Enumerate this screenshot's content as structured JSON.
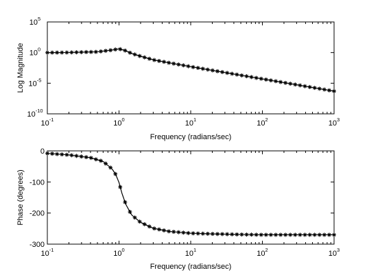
{
  "chart_data": [
    {
      "type": "line",
      "xlabel": "Frequency (radians/sec)",
      "ylabel": "Log Magnitude",
      "xscale": "log",
      "yscale": "log",
      "xlim": [
        0.1,
        1000
      ],
      "ylim": [
        1e-10,
        100000
      ],
      "xticks": [
        {
          "base": "10",
          "exp": "-1"
        },
        {
          "base": "10",
          "exp": "0"
        },
        {
          "base": "10",
          "exp": "1"
        },
        {
          "base": "10",
          "exp": "2"
        },
        {
          "base": "10",
          "exp": "3"
        }
      ],
      "yticks": [
        {
          "base": "10",
          "exp": "-10"
        },
        {
          "base": "10",
          "exp": "-5"
        },
        {
          "base": "10",
          "exp": "0"
        },
        {
          "base": "10",
          "exp": "5"
        }
      ],
      "grid": false,
      "series": [
        {
          "style": "line with asterisk markers",
          "x": [
            0.1,
            0.2,
            0.5,
            0.8,
            1.0,
            1.2,
            1.5,
            2,
            3,
            5,
            10,
            20,
            50,
            100,
            200,
            500,
            1000
          ],
          "y": [
            0.99,
            1.04,
            1.33,
            2.6,
            4.0,
            2.3,
            0.72,
            0.25,
            0.065,
            0.0215,
            0.00502,
            0.00125,
            0.0002,
            5e-05,
            1.25e-05,
            2e-06,
            5e-07
          ]
        }
      ]
    },
    {
      "type": "line",
      "xlabel": "Frequency (radians/sec)",
      "ylabel": "Phase (degrees)",
      "xscale": "log",
      "xlim": [
        0.1,
        1000
      ],
      "ylim": [
        -300,
        0
      ],
      "xticks": [
        {
          "base": "10",
          "exp": "-1"
        },
        {
          "base": "10",
          "exp": "0"
        },
        {
          "base": "10",
          "exp": "1"
        },
        {
          "base": "10",
          "exp": "2"
        },
        {
          "base": "10",
          "exp": "3"
        }
      ],
      "yticks": [
        "-300",
        "-200",
        "-100",
        "0"
      ],
      "grid": false,
      "series": [
        {
          "style": "line with asterisk markers",
          "x": [
            0.1,
            0.2,
            0.4,
            0.6,
            0.8,
            0.9,
            1.0,
            1.1,
            1.25,
            1.5,
            2,
            3,
            5,
            10,
            20,
            50,
            100,
            200,
            500,
            1000
          ],
          "y": [
            -8,
            -13,
            -22,
            -34,
            -58,
            -76,
            -102,
            -137,
            -173,
            -206,
            -230,
            -249,
            -259,
            -265,
            -267,
            -269,
            -270,
            -270,
            -270,
            -270
          ]
        }
      ]
    }
  ]
}
